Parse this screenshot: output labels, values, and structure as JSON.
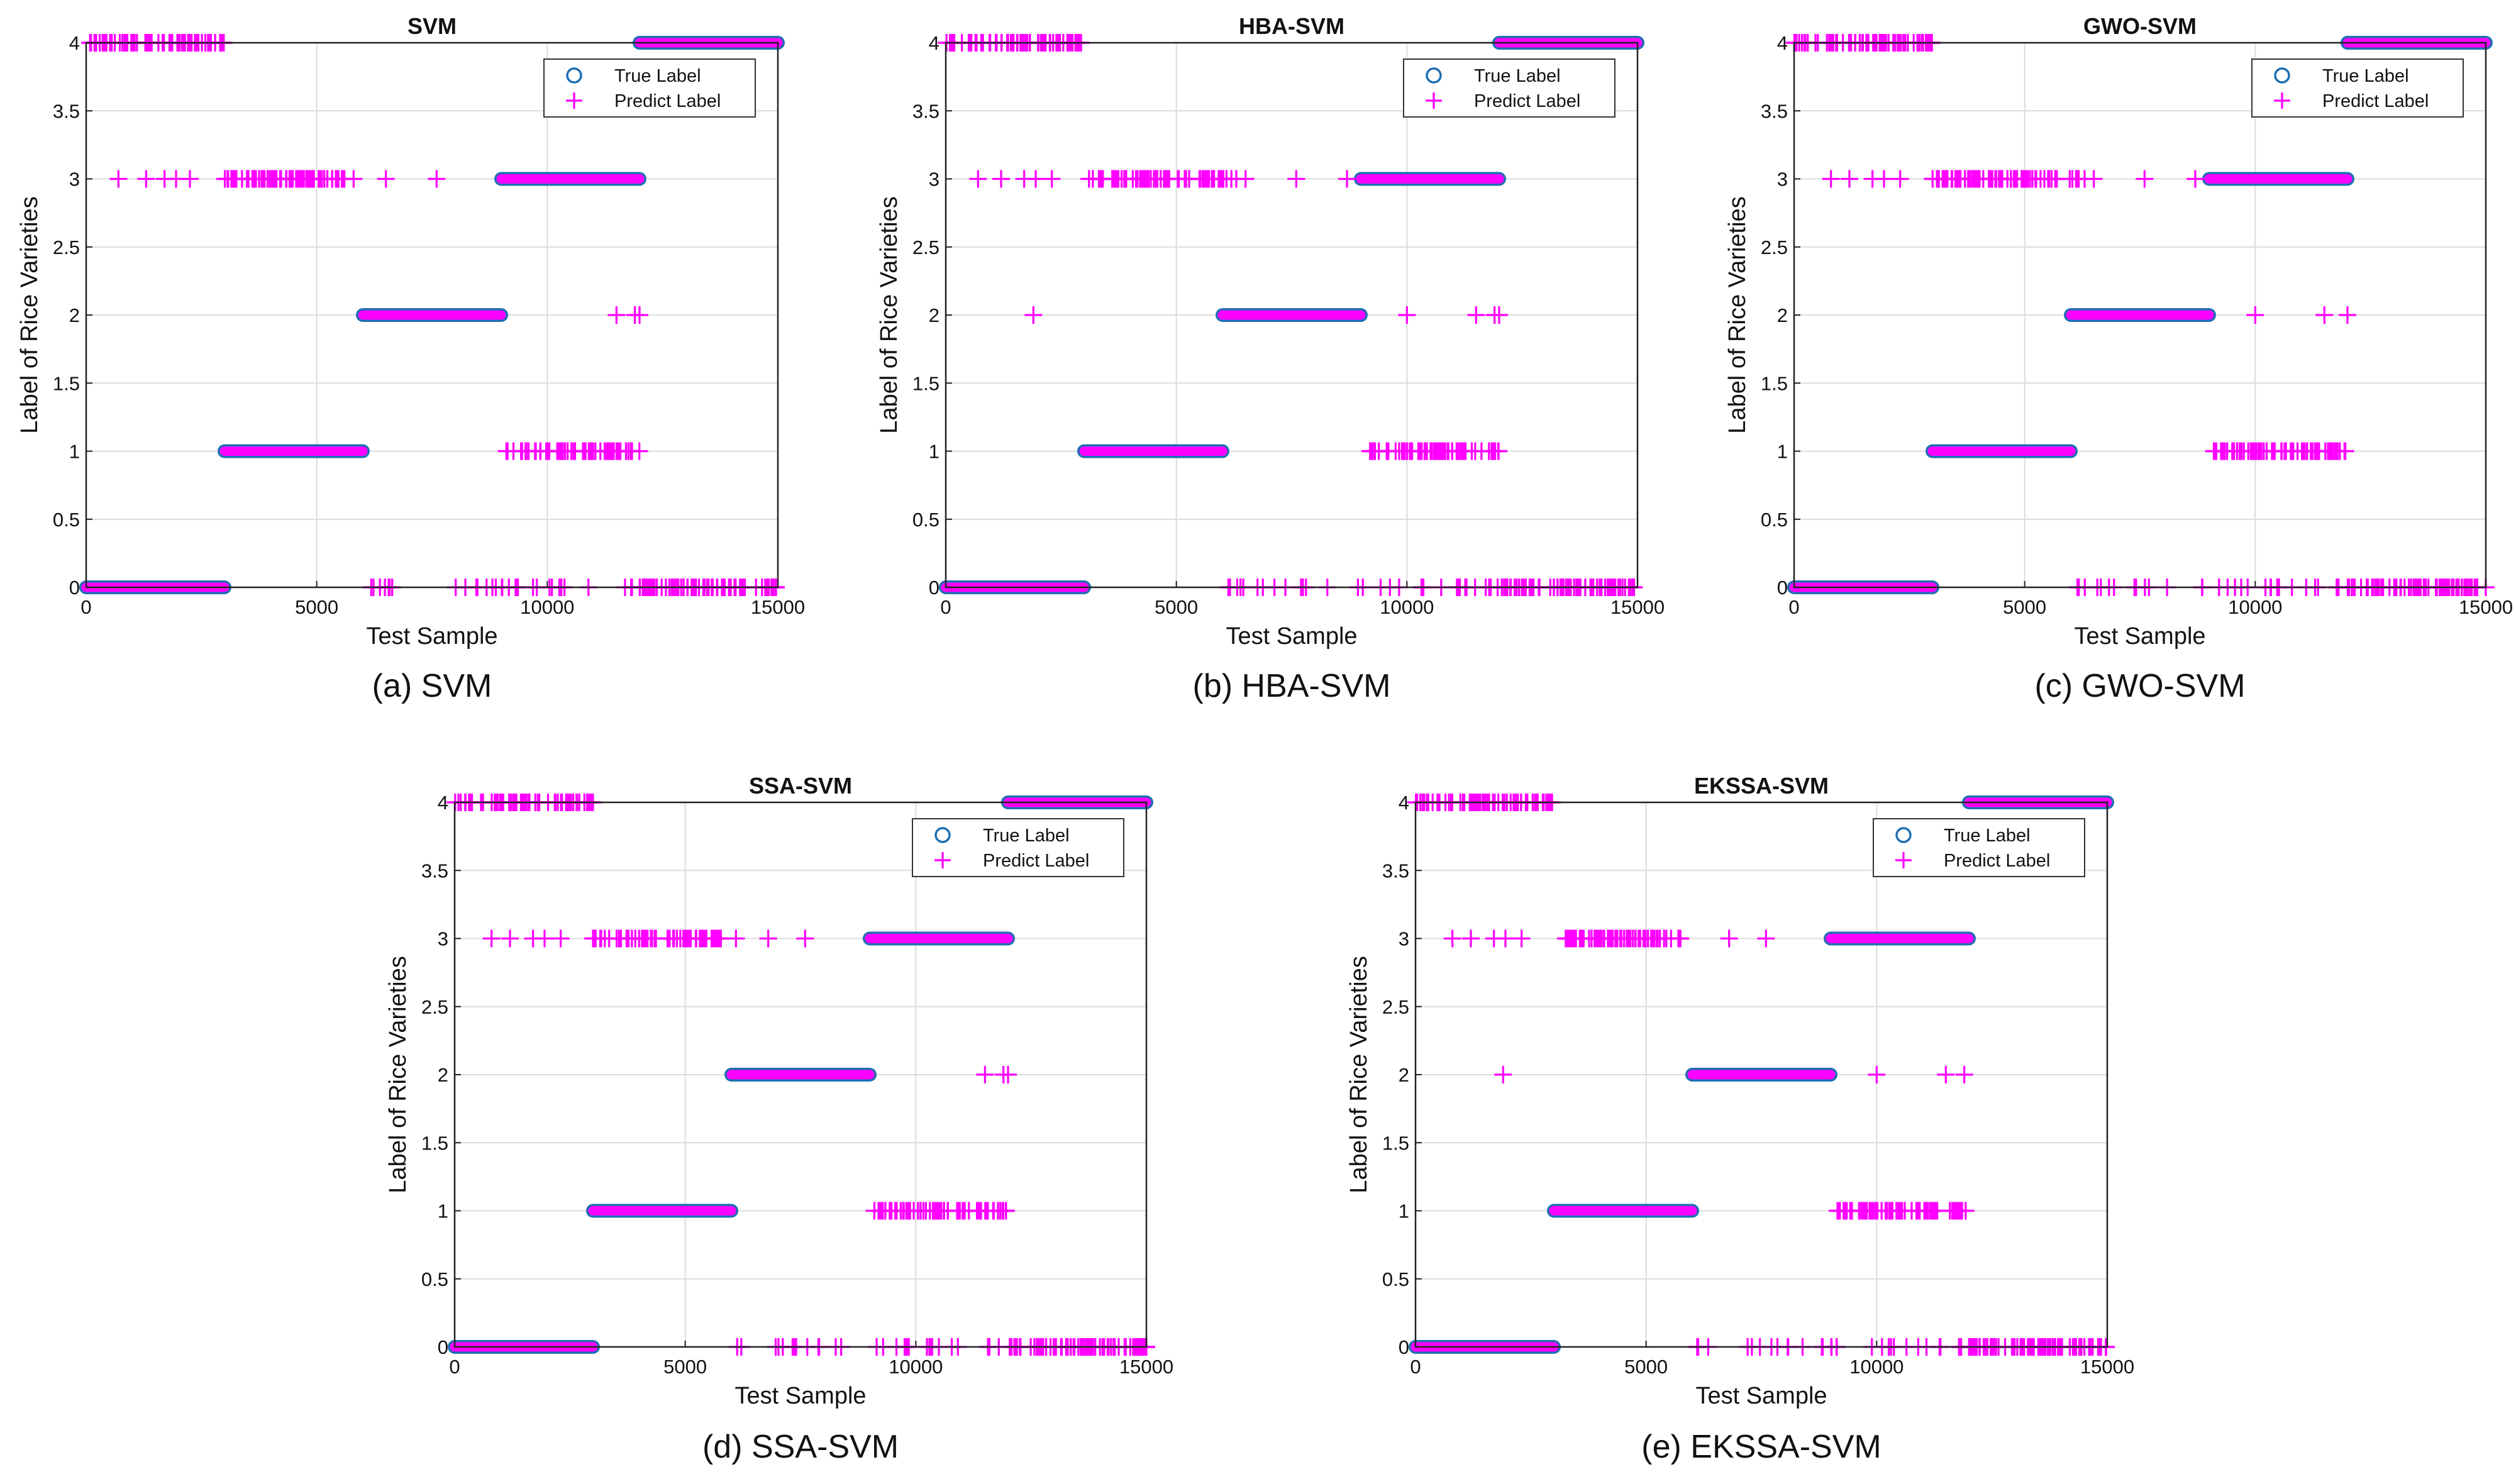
{
  "colors": {
    "true_marker": "#1f6fb2",
    "predict_marker": "#ff00ff",
    "grid": "#dcdcdc",
    "axis": "#222222"
  },
  "legend": {
    "true_label": "True Label",
    "predict_label": "Predict Label",
    "true_icon": "circle-marker-icon",
    "predict_icon": "plus-marker-icon"
  },
  "chart_data": [
    {
      "id": "svm",
      "type": "scatter",
      "title": "SVM",
      "caption": "(a) SVM",
      "xlabel": "Test Sample",
      "ylabel": "Label of Rice Varieties",
      "xlim": [
        0,
        15000
      ],
      "ylim": [
        0,
        4
      ],
      "xticks": [
        0,
        5000,
        10000,
        15000
      ],
      "xtick_labels": [
        "0",
        "5000",
        "10000",
        "15000"
      ],
      "yticks": [
        0,
        0.5,
        1,
        1.5,
        2,
        2.5,
        3,
        3.5,
        4
      ],
      "ytick_labels": [
        "0",
        "0.5",
        "1",
        "1.5",
        "2",
        "2.5",
        "3",
        "3.5",
        "4"
      ],
      "grid": true,
      "legend_position": "top-right",
      "series": [
        {
          "name": "True Label",
          "segments": [
            {
              "label": 0,
              "x": [
                0,
                3000
              ]
            },
            {
              "label": 1,
              "x": [
                3000,
                6000
              ]
            },
            {
              "label": 2,
              "x": [
                6000,
                9000
              ]
            },
            {
              "label": 3,
              "x": [
                9000,
                12000
              ]
            },
            {
              "label": 4,
              "x": [
                12000,
                15000
              ]
            }
          ]
        },
        {
          "name": "Predict Label",
          "dense": [
            {
              "label": 0,
              "x": [
                0,
                3000
              ]
            },
            {
              "label": 1,
              "x": [
                3000,
                6000
              ]
            },
            {
              "label": 2,
              "x": [
                6000,
                9000
              ]
            },
            {
              "label": 3,
              "x": [
                9000,
                12000
              ]
            },
            {
              "label": 4,
              "x": [
                12000,
                15000
              ]
            }
          ],
          "misclassified": [
            {
              "label": 4,
              "x": [
                0,
                3000
              ],
              "count": 70
            },
            {
              "label": 3,
              "x": [
                3000,
                5600
              ],
              "count": 75
            },
            {
              "label": 3,
              "x": [
                700,
                1300,
                1700,
                1950,
                2250,
                5800,
                6500,
                7600
              ]
            },
            {
              "label": 2,
              "x": [
                11500,
                11900,
                12000
              ]
            },
            {
              "label": 1,
              "x": [
                9100,
                12000
              ],
              "count": 70
            },
            {
              "label": 0,
              "x": [
                6000,
                9000
              ],
              "count": 14
            },
            {
              "label": 0,
              "x": [
                9000,
                12000
              ],
              "count": 18
            },
            {
              "label": 0,
              "x": [
                12000,
                15000
              ],
              "count": 80
            }
          ]
        }
      ]
    },
    {
      "id": "hba",
      "type": "scatter",
      "title": "HBA-SVM",
      "caption": "(b) HBA-SVM",
      "xlabel": "Test Sample",
      "ylabel": "Label of Rice Varieties",
      "xlim": [
        0,
        15000
      ],
      "ylim": [
        0,
        4
      ],
      "xticks": [
        0,
        5000,
        10000,
        15000
      ],
      "xtick_labels": [
        "0",
        "5000",
        "10000",
        "15000"
      ],
      "yticks": [
        0,
        0.5,
        1,
        1.5,
        2,
        2.5,
        3,
        3.5,
        4
      ],
      "ytick_labels": [
        "0",
        "0.5",
        "1",
        "1.5",
        "2",
        "2.5",
        "3",
        "3.5",
        "4"
      ],
      "grid": true,
      "legend_position": "top-right",
      "series": [
        {
          "name": "True Label",
          "segments": [
            {
              "label": 0,
              "x": [
                0,
                3000
              ]
            },
            {
              "label": 1,
              "x": [
                3000,
                6000
              ]
            },
            {
              "label": 2,
              "x": [
                6000,
                9000
              ]
            },
            {
              "label": 3,
              "x": [
                9000,
                12000
              ]
            },
            {
              "label": 4,
              "x": [
                12000,
                15000
              ]
            }
          ]
        },
        {
          "name": "Predict Label",
          "dense": [
            {
              "label": 0,
              "x": [
                0,
                3000
              ]
            },
            {
              "label": 1,
              "x": [
                3000,
                6000
              ]
            },
            {
              "label": 2,
              "x": [
                6000,
                9000
              ]
            },
            {
              "label": 3,
              "x": [
                9000,
                12000
              ]
            },
            {
              "label": 4,
              "x": [
                12000,
                15000
              ]
            }
          ],
          "misclassified": [
            {
              "label": 4,
              "x": [
                0,
                3000
              ],
              "count": 70
            },
            {
              "label": 3,
              "x": [
                3000,
                6200
              ],
              "count": 75
            },
            {
              "label": 3,
              "x": [
                700,
                1200,
                1700,
                1950,
                2300,
                6300,
                6500,
                7600,
                8700
              ]
            },
            {
              "label": 2,
              "x": [
                1900,
                10000,
                11500,
                11900,
                12000
              ]
            },
            {
              "label": 1,
              "x": [
                9100,
                12000
              ],
              "count": 70
            },
            {
              "label": 0,
              "x": [
                6000,
                9000
              ],
              "count": 14
            },
            {
              "label": 0,
              "x": [
                9000,
                12000
              ],
              "count": 18
            },
            {
              "label": 0,
              "x": [
                12000,
                15000
              ],
              "count": 80
            }
          ]
        }
      ]
    },
    {
      "id": "gwo",
      "type": "scatter",
      "title": "GWO-SVM",
      "caption": "(c) GWO-SVM",
      "xlabel": "Test Sample",
      "ylabel": "Label of Rice Varieties",
      "xlim": [
        0,
        15000
      ],
      "ylim": [
        0,
        4
      ],
      "xticks": [
        0,
        5000,
        10000,
        15000
      ],
      "xtick_labels": [
        "0",
        "5000",
        "10000",
        "15000"
      ],
      "yticks": [
        0,
        0.5,
        1,
        1.5,
        2,
        2.5,
        3,
        3.5,
        4
      ],
      "ytick_labels": [
        "0",
        "0.5",
        "1",
        "1.5",
        "2",
        "2.5",
        "3",
        "3.5",
        "4"
      ],
      "grid": true,
      "legend_position": "top-right",
      "series": [
        {
          "name": "True Label",
          "segments": [
            {
              "label": 0,
              "x": [
                0,
                3000
              ]
            },
            {
              "label": 1,
              "x": [
                3000,
                6000
              ]
            },
            {
              "label": 2,
              "x": [
                6000,
                9000
              ]
            },
            {
              "label": 3,
              "x": [
                9000,
                12000
              ]
            },
            {
              "label": 4,
              "x": [
                12000,
                15000
              ]
            }
          ]
        },
        {
          "name": "Predict Label",
          "dense": [
            {
              "label": 0,
              "x": [
                0,
                3000
              ]
            },
            {
              "label": 1,
              "x": [
                3000,
                6000
              ]
            },
            {
              "label": 2,
              "x": [
                6000,
                9000
              ]
            },
            {
              "label": 3,
              "x": [
                9000,
                12000
              ]
            },
            {
              "label": 4,
              "x": [
                12000,
                15000
              ]
            }
          ],
          "misclassified": [
            {
              "label": 4,
              "x": [
                0,
                3000
              ],
              "count": 70
            },
            {
              "label": 3,
              "x": [
                3000,
                6200
              ],
              "count": 75
            },
            {
              "label": 3,
              "x": [
                800,
                1200,
                1700,
                1950,
                2300,
                6300,
                6500,
                7600,
                8700
              ]
            },
            {
              "label": 2,
              "x": [
                10000,
                11500,
                12000
              ]
            },
            {
              "label": 1,
              "x": [
                9100,
                12000
              ],
              "count": 70
            },
            {
              "label": 0,
              "x": [
                6000,
                9000
              ],
              "count": 14
            },
            {
              "label": 0,
              "x": [
                9000,
                12000
              ],
              "count": 18
            },
            {
              "label": 0,
              "x": [
                12000,
                15000
              ],
              "count": 80
            }
          ]
        }
      ]
    },
    {
      "id": "ssa",
      "type": "scatter",
      "title": "SSA-SVM",
      "caption": "(d) SSA-SVM",
      "xlabel": "Test Sample",
      "ylabel": "Label of Rice Varieties",
      "xlim": [
        0,
        15000
      ],
      "ylim": [
        0,
        4
      ],
      "xticks": [
        0,
        5000,
        10000,
        15000
      ],
      "xtick_labels": [
        "0",
        "5000",
        "10000",
        "15000"
      ],
      "yticks": [
        0,
        0.5,
        1,
        1.5,
        2,
        2.5,
        3,
        3.5,
        4
      ],
      "ytick_labels": [
        "0",
        "0.5",
        "1",
        "1.5",
        "2",
        "2.5",
        "3",
        "3.5",
        "4"
      ],
      "grid": true,
      "legend_position": "top-right",
      "series": [
        {
          "name": "True Label",
          "segments": [
            {
              "label": 0,
              "x": [
                0,
                3000
              ]
            },
            {
              "label": 1,
              "x": [
                3000,
                6000
              ]
            },
            {
              "label": 2,
              "x": [
                6000,
                9000
              ]
            },
            {
              "label": 3,
              "x": [
                9000,
                12000
              ]
            },
            {
              "label": 4,
              "x": [
                12000,
                15000
              ]
            }
          ]
        },
        {
          "name": "Predict Label",
          "dense": [
            {
              "label": 0,
              "x": [
                0,
                3000
              ]
            },
            {
              "label": 1,
              "x": [
                3000,
                6000
              ]
            },
            {
              "label": 2,
              "x": [
                6000,
                9000
              ]
            },
            {
              "label": 3,
              "x": [
                9000,
                12000
              ]
            },
            {
              "label": 4,
              "x": [
                12000,
                15000
              ]
            }
          ],
          "misclassified": [
            {
              "label": 4,
              "x": [
                0,
                3000
              ],
              "count": 70
            },
            {
              "label": 3,
              "x": [
                3000,
                5800
              ],
              "count": 75
            },
            {
              "label": 3,
              "x": [
                800,
                1200,
                1700,
                1950,
                2300,
                6100,
                6800,
                7600
              ]
            },
            {
              "label": 2,
              "x": [
                11500,
                11900,
                12000
              ]
            },
            {
              "label": 1,
              "x": [
                9100,
                12000
              ],
              "count": 70
            },
            {
              "label": 0,
              "x": [
                6000,
                9000
              ],
              "count": 14
            },
            {
              "label": 0,
              "x": [
                9000,
                12000
              ],
              "count": 18
            },
            {
              "label": 0,
              "x": [
                12000,
                15000
              ],
              "count": 80
            }
          ]
        }
      ]
    },
    {
      "id": "ekssa",
      "type": "scatter",
      "title": "EKSSA-SVM",
      "caption": "(e) EKSSA-SVM",
      "xlabel": "Test Sample",
      "ylabel": "Label of Rice Varieties",
      "xlim": [
        0,
        15000
      ],
      "ylim": [
        0,
        4
      ],
      "xticks": [
        0,
        5000,
        10000,
        15000
      ],
      "xtick_labels": [
        "0",
        "5000",
        "10000",
        "15000"
      ],
      "yticks": [
        0,
        0.5,
        1,
        1.5,
        2,
        2.5,
        3,
        3.5,
        4
      ],
      "ytick_labels": [
        "0",
        "0.5",
        "1",
        "1.5",
        "2",
        "2.5",
        "3",
        "3.5",
        "4"
      ],
      "grid": true,
      "legend_position": "top-right",
      "series": [
        {
          "name": "True Label",
          "segments": [
            {
              "label": 0,
              "x": [
                0,
                3000
              ]
            },
            {
              "label": 1,
              "x": [
                3000,
                6000
              ]
            },
            {
              "label": 2,
              "x": [
                6000,
                9000
              ]
            },
            {
              "label": 3,
              "x": [
                9000,
                12000
              ]
            },
            {
              "label": 4,
              "x": [
                12000,
                15000
              ]
            }
          ]
        },
        {
          "name": "Predict Label",
          "dense": [
            {
              "label": 0,
              "x": [
                0,
                3000
              ]
            },
            {
              "label": 1,
              "x": [
                3000,
                6000
              ]
            },
            {
              "label": 2,
              "x": [
                6000,
                9000
              ]
            },
            {
              "label": 3,
              "x": [
                9000,
                12000
              ]
            },
            {
              "label": 4,
              "x": [
                12000,
                15000
              ]
            }
          ],
          "misclassified": [
            {
              "label": 4,
              "x": [
                0,
                3000
              ],
              "count": 70
            },
            {
              "label": 3,
              "x": [
                3000,
                5800
              ],
              "count": 75
            },
            {
              "label": 3,
              "x": [
                800,
                1200,
                1700,
                1950,
                2300,
                6800,
                7600
              ]
            },
            {
              "label": 2,
              "x": [
                1900,
                10000,
                11500,
                11900
              ]
            },
            {
              "label": 1,
              "x": [
                9100,
                12000
              ],
              "count": 70
            },
            {
              "label": 0,
              "x": [
                6000,
                9000
              ],
              "count": 14
            },
            {
              "label": 0,
              "x": [
                9000,
                12000
              ],
              "count": 18
            },
            {
              "label": 0,
              "x": [
                12000,
                15000
              ],
              "count": 80
            }
          ]
        }
      ]
    }
  ]
}
